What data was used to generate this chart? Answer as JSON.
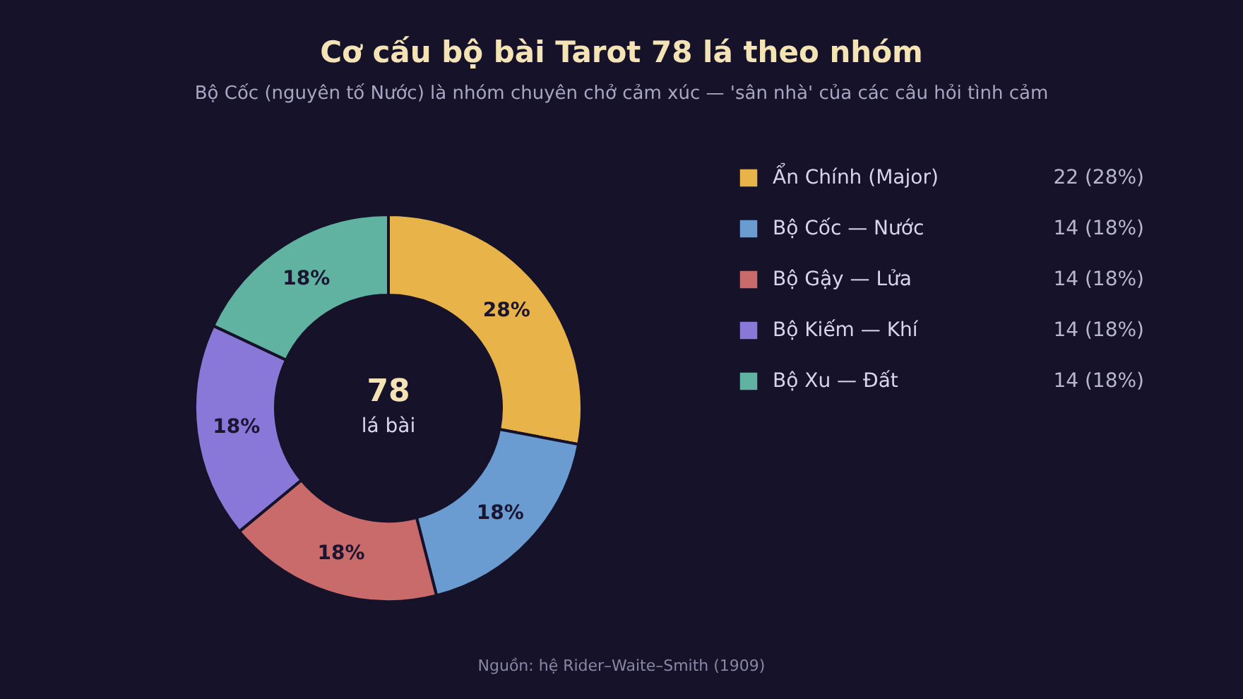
{
  "chart_data": {
    "type": "donut",
    "title": "Cơ cấu bộ bài Tarot 78 lá theo nhóm",
    "subtitle": "Bộ Cốc (nguyên tố Nước) là nhóm chuyên chở cảm xúc — 'sân nhà' của các câu hỏi tình cảm",
    "categories": [
      "Ẩn Chính (Major)",
      "Bộ Cốc — Nước",
      "Bộ Gậy — Lửa",
      "Bộ Kiếm — Khí",
      "Bộ Xu — Đất"
    ],
    "values": [
      28,
      18,
      18,
      18,
      18
    ],
    "value_labels": [
      "28%",
      "18%",
      "18%",
      "18%",
      "18%"
    ],
    "colors": [
      "#e8b44a",
      "#6a9bd1",
      "#c96b6b",
      "#8a78d8",
      "#5fb3a0"
    ],
    "legend": "right",
    "annotations": [
      "78",
      "lá bài",
      "Nguồn: hệ Rider–Waite–Smith (1909)",
      "22 (28%)",
      "14 (18%)",
      "14 (18%)",
      "14 (18%)",
      "14 (18%)"
    ]
  }
}
